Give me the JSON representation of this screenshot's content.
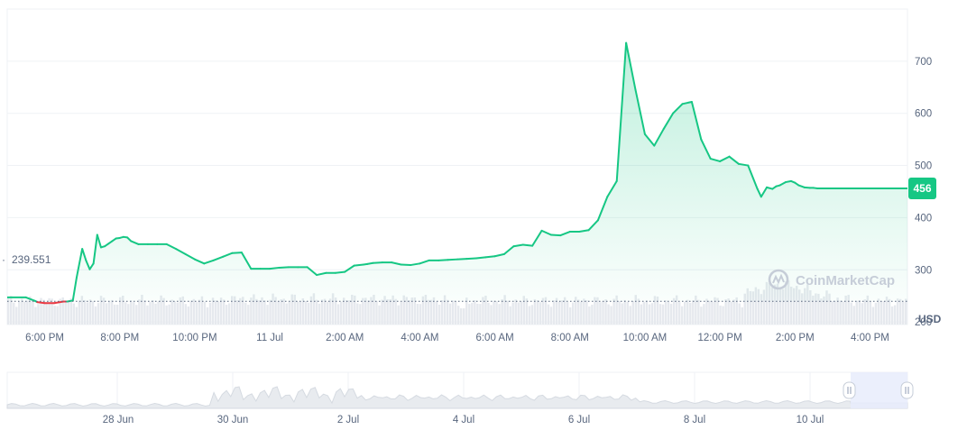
{
  "chart_data": {
    "type": "line",
    "unit_label": "USD",
    "y_ticks": [
      200,
      300,
      400,
      500,
      600,
      700
    ],
    "ylim": [
      195,
      800
    ],
    "x_ticks": [
      "6:00 PM",
      "8:00 PM",
      "10:00 PM",
      "11 Jul",
      "2:00 AM",
      "4:00 AM",
      "6:00 AM",
      "8:00 AM",
      "10:00 AM",
      "12:00 PM",
      "2:00 PM",
      "4:00 PM"
    ],
    "reference_price": "239.551",
    "reference_value": 239.551,
    "current_price": "456",
    "current_value": 456,
    "watermark": "CoinMarketCap",
    "grid": true,
    "colors": {
      "up": "#16c784",
      "down": "#ea3943",
      "grid": "#eff2f5",
      "volume": "#e6e9ee",
      "navigator_area": "#e8ebef",
      "navigator_selection": "#e8ecfb"
    },
    "series": [
      {
        "x": [
          0,
          0.5,
          0.75,
          0.8,
          1.0,
          1.25,
          1.5,
          1.6,
          1.75,
          1.85,
          2.0,
          2.1,
          2.2,
          2.3,
          2.4,
          2.5,
          2.6,
          2.7,
          2.8,
          2.9,
          3.0,
          3.1,
          3.2,
          3.3,
          3.5,
          3.75,
          4.0,
          4.25,
          4.5,
          4.75,
          5.0,
          5.25,
          5.5,
          5.75,
          6.0,
          6.25,
          6.5,
          6.75,
          7.0,
          7.25,
          7.5,
          7.75,
          8.0,
          8.25,
          8.5,
          8.75,
          9.0,
          9.25,
          9.5,
          9.6,
          9.75,
          10.0,
          10.25,
          10.5,
          10.75,
          11.0,
          11.25,
          11.5,
          11.75,
          12.0,
          12.25,
          12.5,
          12.75,
          13.0,
          13.25,
          13.5,
          13.75,
          14.0,
          14.25,
          14.5,
          14.75,
          15.0,
          15.25,
          15.5,
          15.75,
          16.0,
          16.25,
          16.5,
          16.75,
          17.0,
          17.25,
          17.5,
          17.75,
          18.0,
          18.25,
          18.5,
          18.75,
          19.0,
          19.25,
          19.5,
          19.75,
          20.0,
          20.1,
          20.25,
          20.4,
          20.5,
          20.6,
          20.75,
          20.9,
          21.0,
          21.1,
          21.25,
          21.4,
          21.5,
          21.6,
          21.75,
          21.9,
          22.0,
          22.1,
          22.25,
          22.4,
          22.5,
          22.6,
          22.75,
          22.9,
          23.0,
          23.25,
          23.5,
          23.75,
          24.0
        ],
        "values": [
          247,
          247,
          240,
          238,
          236,
          236,
          239,
          239,
          241,
          285,
          340,
          318,
          301,
          312,
          367,
          343,
          345,
          350,
          355,
          360,
          361,
          363,
          362,
          355,
          349,
          349,
          349,
          349,
          340,
          330,
          320,
          312,
          318,
          325,
          332,
          333,
          302,
          302,
          302,
          304,
          305,
          305,
          305,
          290,
          294,
          294,
          296,
          308,
          310,
          311,
          313,
          314,
          314,
          310,
          309,
          312,
          318,
          318,
          319,
          320,
          321,
          322,
          324,
          326,
          330,
          345,
          348,
          346,
          375,
          367,
          366,
          373,
          373,
          376,
          395,
          440,
          470,
          735,
          645,
          560,
          538,
          570,
          600,
          618,
          622,
          550,
          513,
          508,
          517,
          503,
          500,
          455,
          440,
          458,
          455,
          460,
          462,
          468,
          470,
          467,
          462,
          458,
          457,
          457,
          456,
          456,
          456,
          456,
          456,
          456,
          456,
          456,
          456,
          456,
          456,
          456,
          456,
          456,
          456,
          456
        ]
      }
    ],
    "navigator": {
      "x_ticks": [
        "28 Jun",
        "30 Jun",
        "2 Jul",
        "4 Jul",
        "6 Jul",
        "8 Jul",
        "10 Jul"
      ]
    }
  }
}
